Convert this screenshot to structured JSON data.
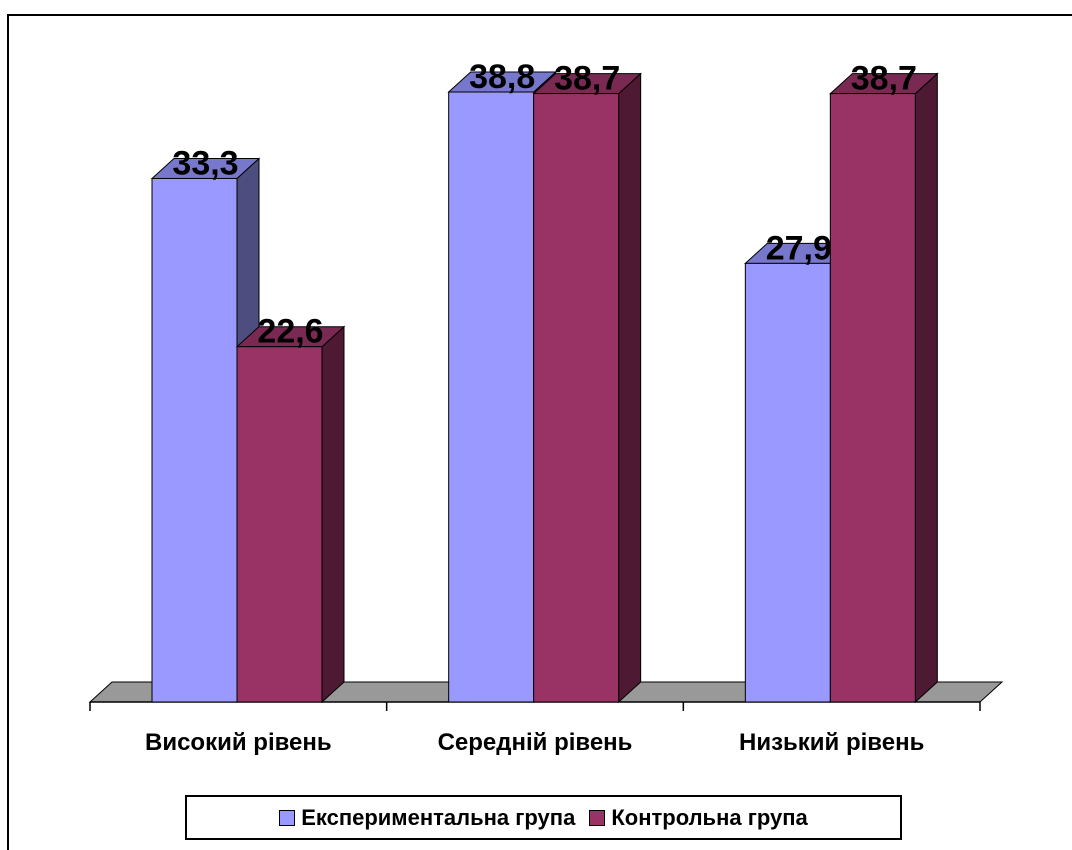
{
  "chart_data": {
    "type": "bar",
    "categories": [
      "Високий рівень",
      "Середній рівень",
      "Низький рівень"
    ],
    "series": [
      {
        "name": "Експериментальна група",
        "values": [
          33.3,
          38.8,
          27.9
        ],
        "labels": [
          "33,3",
          "38,8",
          "27,9"
        ],
        "color": "#9999ff",
        "side_color": "#4d4d80",
        "top_color": "#7777cc"
      },
      {
        "name": "Контрольна група",
        "values": [
          22.6,
          38.7,
          38.7
        ],
        "labels": [
          "22,6",
          "38,7",
          "38,7"
        ],
        "color": "#993366",
        "side_color": "#4d1933",
        "top_color": "#7a2952"
      }
    ],
    "ylim": [
      0,
      44
    ],
    "grid": false,
    "legend_position": "bottom",
    "bar_style": "3d"
  }
}
